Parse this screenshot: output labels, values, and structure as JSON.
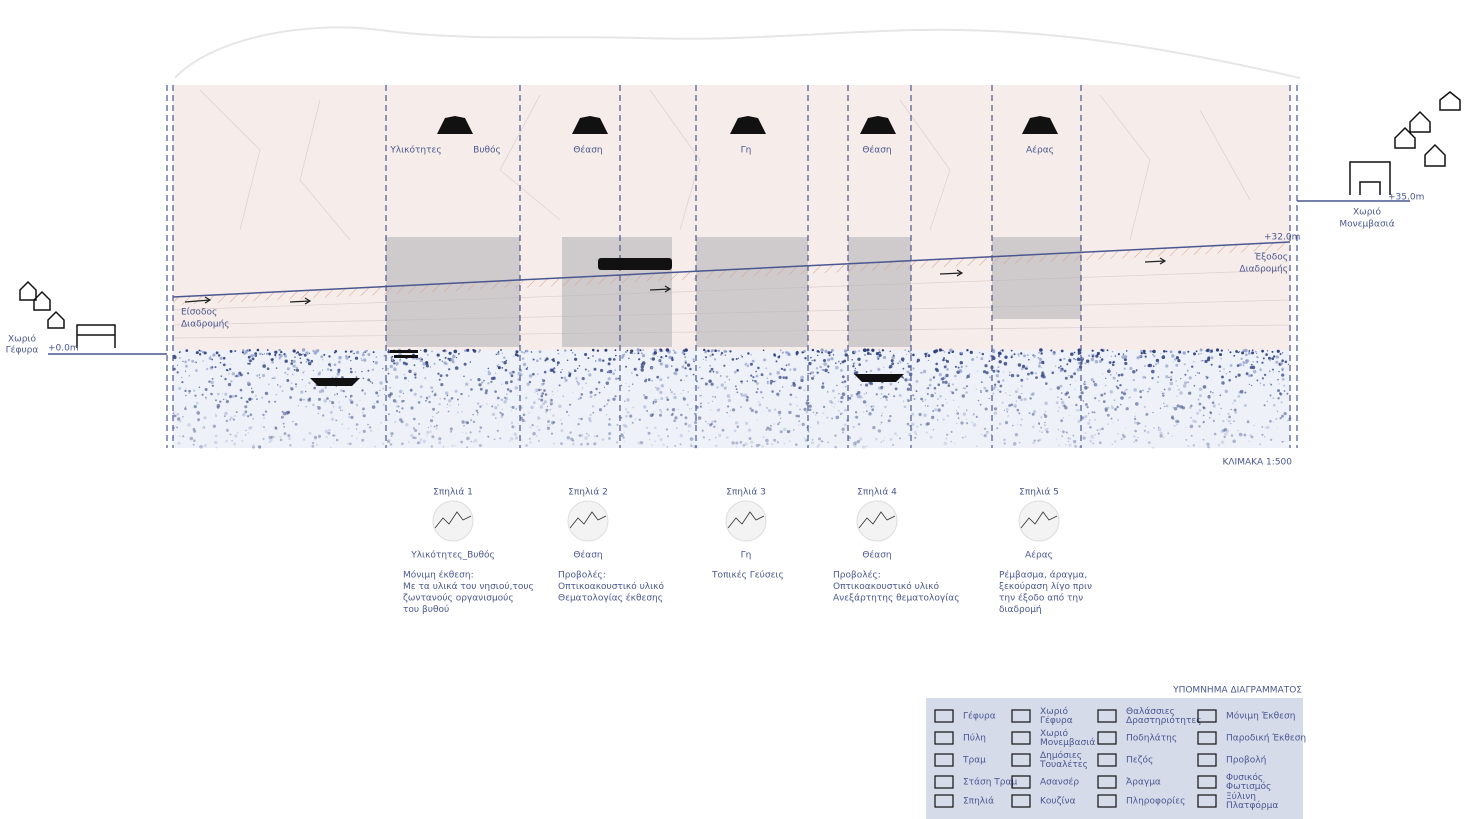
{
  "section": {
    "top_labels": [
      "Υλικότητες",
      "Βυθός",
      "Θέαση",
      "Γη",
      "Θέαση",
      "Αέρας"
    ],
    "left": {
      "village": [
        "Χωριό",
        "Γέφυρα"
      ],
      "elevation": "+0.0m",
      "entry": [
        "Είσοδος",
        "Διαδρομής"
      ]
    },
    "right": {
      "village": [
        "Χωριό",
        "Μονεμβασιά"
      ],
      "elevation": "+35.0m",
      "exit": [
        "Έξοδος",
        "Διαδρομής"
      ]
    },
    "path_elevation": "+32.0m",
    "scale": "ΚΛΙΜΑΚΑ 1:500"
  },
  "caves": [
    {
      "name": "Σπηλιά 1",
      "theme": "Υλικότητες_Βυθός",
      "description": [
        "Μόνιμη έκθεση:",
        "Με τα υλικά του νησιού,τους",
        "ζωντανούς οργανισμούς",
        "του βυθού"
      ]
    },
    {
      "name": "Σπηλιά 2",
      "theme": "Θέαση",
      "description": [
        "Προβολές:",
        "Οπτικοακουστικό υλικό",
        "Θεματολογίας έκθεσης"
      ]
    },
    {
      "name": "Σπηλιά 3",
      "theme": "Γη",
      "description": [
        "Τοπικές Γεύσεις"
      ]
    },
    {
      "name": "Σπηλιά 4",
      "theme": "Θέαση",
      "description": [
        "Προβολές:",
        "Οπτικοακουστικό υλικό",
        "Ανεξάρτητης θεματολογίας"
      ]
    },
    {
      "name": "Σπηλιά 5",
      "theme": "Αέρας",
      "description": [
        "Ρέμβασμα, άραγμα,",
        "ξεκούραση λίγο πριν",
        "την έξοδο από την",
        "διαδρομή"
      ]
    }
  ],
  "legend": {
    "title": "ΥΠΟΜΝΗΜΑ ΔΙΑΓΡΑΜΜΑΤΟΣ",
    "items": [
      [
        "Γέφυρα"
      ],
      [
        "Πύλη"
      ],
      [
        "Τραμ"
      ],
      [
        "Στάση Τραμ"
      ],
      [
        "Σπηλιά"
      ],
      [
        "Χωριό",
        "Γέφυρα"
      ],
      [
        "Χωριό",
        "Μονεμβασιά"
      ],
      [
        "Δημόσιες",
        "Τουαλέτες"
      ],
      [
        "Ασανσέρ"
      ],
      [
        "Κουζίνα"
      ],
      [
        "Θαλάσσιες",
        "Δραστηριότητες"
      ],
      [
        "Ποδηλάτης"
      ],
      [
        "Πεζός"
      ],
      [
        "Άραγμα"
      ],
      [
        "Πληροφορίες"
      ],
      [
        "Μόνιμη Έκθεση"
      ],
      [
        "Παροδική Έκθεση"
      ],
      [
        "Προβολή"
      ],
      [
        "Φυσικός",
        "Φωτισμός"
      ],
      [
        "Ξύλινη",
        "Πλατφόρμα"
      ]
    ]
  }
}
